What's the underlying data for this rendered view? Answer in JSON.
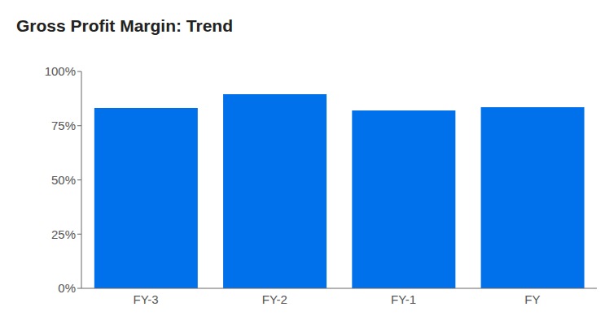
{
  "chart_data": {
    "type": "bar",
    "title": "Gross Profit Margin: Trend",
    "categories": [
      "FY-3",
      "FY-2",
      "FY-1",
      "FY"
    ],
    "values": [
      83.1,
      89.5,
      82.0,
      83.5
    ],
    "color": "#0070eb",
    "ylim": [
      0,
      100
    ],
    "yticks": [
      {
        "value": 0,
        "label": "0%"
      },
      {
        "value": 25,
        "label": "25%"
      },
      {
        "value": 50,
        "label": "50%"
      },
      {
        "value": 75,
        "label": "75%"
      },
      {
        "value": 100,
        "label": "100%"
      }
    ],
    "grid": false
  }
}
